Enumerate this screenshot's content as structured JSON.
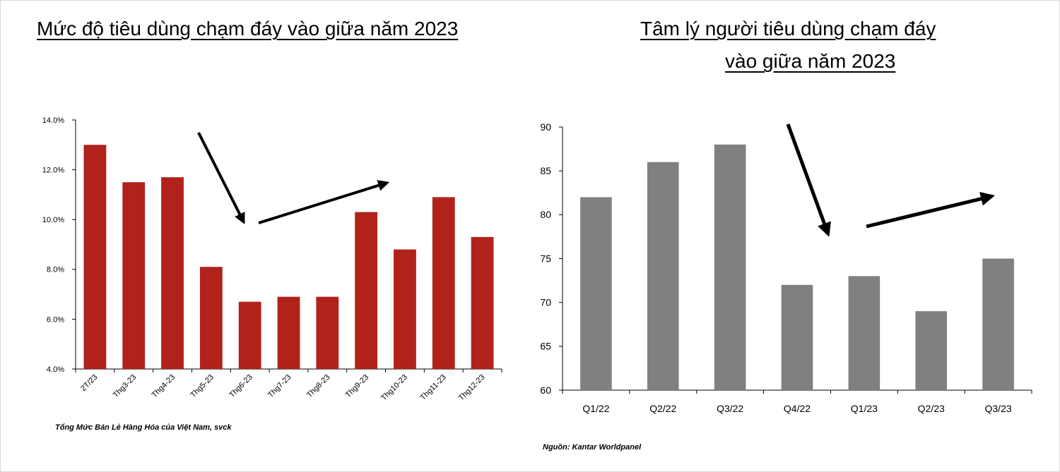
{
  "left_panel": {
    "title": "Mức độ tiêu dùng chạm đáy vào giữa năm 2023",
    "source_note": "Tổng Mức Bán Lẻ Hàng Hóa của Việt Nam, svck"
  },
  "right_panel": {
    "title_line1": "Tâm lý người tiêu dùng chạm đáy",
    "title_line2": "vào giữa năm 2023",
    "source_note": "Nguồn: Kantar Worldpanel"
  },
  "chart_data": [
    {
      "type": "bar",
      "categories": [
        "2T/23",
        "Thg3-23",
        "Thg4-23",
        "Thg5-23",
        "Thg6-23",
        "Thg7-23",
        "Thg8-23",
        "Thg9-23",
        "Thg10-23",
        "Thg11-23",
        "Thg12-23"
      ],
      "values": [
        13.0,
        11.5,
        11.7,
        8.1,
        6.7,
        6.9,
        6.9,
        10.3,
        8.8,
        10.9,
        9.3
      ],
      "ylim": [
        4.0,
        14.0
      ],
      "yticks": [
        "4.0%",
        "6.0%",
        "8.0%",
        "10.0%",
        "12.0%",
        "14.0%"
      ],
      "ytick_values": [
        4,
        6,
        8,
        10,
        12,
        14
      ],
      "bar_color": "#b0221a",
      "grid": false,
      "annotations": [
        "arrow-down",
        "arrow-up"
      ]
    },
    {
      "type": "bar",
      "categories": [
        "Q1/22",
        "Q2/22",
        "Q3/22",
        "Q4/22",
        "Q1/23",
        "Q2/23",
        "Q3/23"
      ],
      "values": [
        82,
        86,
        88,
        72,
        73,
        69,
        75
      ],
      "ylim": [
        60,
        90
      ],
      "yticks": [
        "60",
        "65",
        "70",
        "75",
        "80",
        "85",
        "90"
      ],
      "ytick_values": [
        60,
        65,
        70,
        75,
        80,
        85,
        90
      ],
      "bar_color": "#808080",
      "grid": false,
      "annotations": [
        "arrow-down",
        "arrow-up"
      ]
    }
  ]
}
